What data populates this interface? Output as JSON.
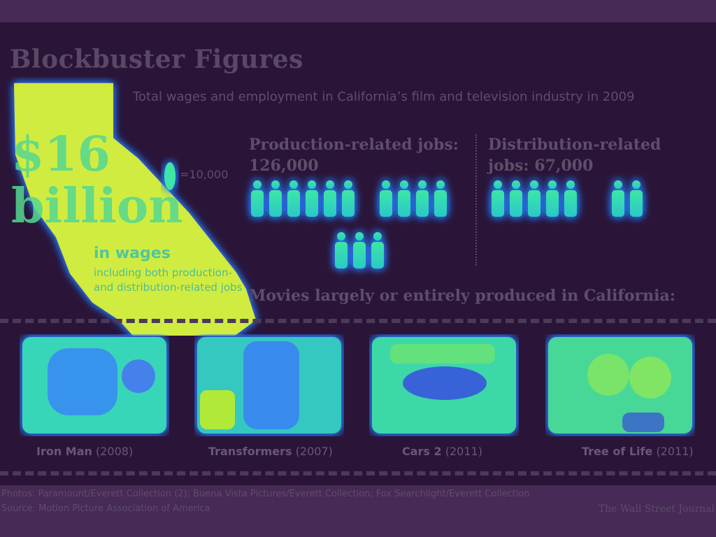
{
  "header": {
    "title": "Blockbuster Figures",
    "subtitle": "Total wages and employment in California’s film and television industry in 2009"
  },
  "chart_data": {
    "type": "pictogram",
    "title": "Blockbuster Figures",
    "subtitle": "Total wages and employment in California’s film and television industry in 2009",
    "unit_label": "=10,000",
    "people_per_icon": 10000,
    "wages": {
      "value": "$16 billion",
      "label": "in wages",
      "detail": "including both production- and distribution-related jobs"
    },
    "series": [
      {
        "name": "Production-related jobs:",
        "display": "126,000",
        "value": 126000,
        "icons": 12.6
      },
      {
        "name": "Distribution-related jobs:",
        "display": "67,000",
        "value": 67000,
        "icons": 6.7
      }
    ]
  },
  "movies": {
    "heading": "Movies largely or entirely produced in California:",
    "items": [
      {
        "name": "Iron Man",
        "year": "(2008)"
      },
      {
        "name": "Transformers",
        "year": "(2007)"
      },
      {
        "name": "Cars 2",
        "year": "(2011)"
      },
      {
        "name": "Tree of Life",
        "year": "(2011)"
      }
    ]
  },
  "footer": {
    "photos": "Photos: Paramount/Everett Collection (2); Buena Vista Pictures/Everett Collection; Fox Searchlight/Everett Collection",
    "source": "Source: Motion Picture Association of America",
    "credit": "The Wall Street Journal"
  },
  "colors": {
    "background": "#2a1538",
    "band": "#472a55",
    "highlight_core": "#d8f000",
    "highlight_mid": "#2ee8a0",
    "highlight_edge": "#2a7cff"
  }
}
